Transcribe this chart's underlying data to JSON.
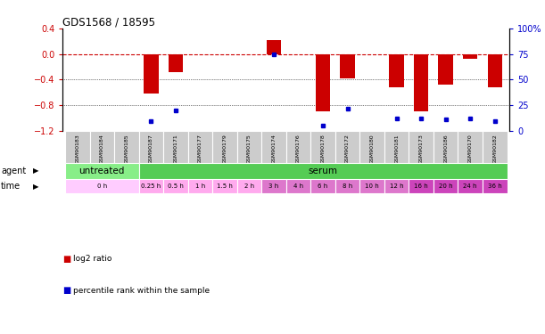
{
  "title": "GDS1568 / 18595",
  "samples": [
    "GSM90183",
    "GSM90184",
    "GSM90185",
    "GSM90187",
    "GSM90171",
    "GSM90177",
    "GSM90179",
    "GSM90175",
    "GSM90174",
    "GSM90176",
    "GSM90178",
    "GSM90172",
    "GSM90180",
    "GSM90181",
    "GSM90173",
    "GSM90186",
    "GSM90170",
    "GSM90182"
  ],
  "log2_ratio": [
    0.0,
    0.0,
    0.0,
    -0.62,
    -0.28,
    0.0,
    0.0,
    0.0,
    0.22,
    0.0,
    -0.9,
    -0.38,
    0.0,
    -0.52,
    -0.9,
    -0.48,
    -0.08,
    -0.52
  ],
  "percentile": [
    null,
    null,
    null,
    10,
    20,
    null,
    null,
    null,
    75,
    null,
    5,
    22,
    null,
    12,
    12,
    11,
    12,
    10
  ],
  "agent_groups": [
    {
      "label": "untreated",
      "start": 0,
      "end": 3,
      "color": "#88ee88"
    },
    {
      "label": "serum",
      "start": 3,
      "end": 18,
      "color": "#55cc55"
    }
  ],
  "time_groups": [
    {
      "label": "0 h",
      "start": 0,
      "end": 3,
      "color": "#ffccff"
    },
    {
      "label": "0.25 h",
      "start": 3,
      "end": 4,
      "color": "#ffaaee"
    },
    {
      "label": "0.5 h",
      "start": 4,
      "end": 5,
      "color": "#ffaaee"
    },
    {
      "label": "1 h",
      "start": 5,
      "end": 6,
      "color": "#ffaaee"
    },
    {
      "label": "1.5 h",
      "start": 6,
      "end": 7,
      "color": "#ffaaee"
    },
    {
      "label": "2 h",
      "start": 7,
      "end": 8,
      "color": "#ffaaee"
    },
    {
      "label": "3 h",
      "start": 8,
      "end": 9,
      "color": "#dd77cc"
    },
    {
      "label": "4 h",
      "start": 9,
      "end": 10,
      "color": "#dd77cc"
    },
    {
      "label": "6 h",
      "start": 10,
      "end": 11,
      "color": "#dd77cc"
    },
    {
      "label": "8 h",
      "start": 11,
      "end": 12,
      "color": "#dd77cc"
    },
    {
      "label": "10 h",
      "start": 12,
      "end": 13,
      "color": "#dd77cc"
    },
    {
      "label": "12 h",
      "start": 13,
      "end": 14,
      "color": "#dd77cc"
    },
    {
      "label": "16 h",
      "start": 14,
      "end": 15,
      "color": "#cc44bb"
    },
    {
      "label": "20 h",
      "start": 15,
      "end": 16,
      "color": "#cc44bb"
    },
    {
      "label": "24 h",
      "start": 16,
      "end": 17,
      "color": "#cc44bb"
    },
    {
      "label": "36 h",
      "start": 17,
      "end": 18,
      "color": "#cc44bb"
    }
  ],
  "ylim": [
    -1.2,
    0.4
  ],
  "yticks_left": [
    -1.2,
    -0.8,
    -0.4,
    0.0,
    0.4
  ],
  "yticks_right_labels": [
    "0",
    "25",
    "50",
    "75",
    "100%"
  ],
  "bar_color": "#cc0000",
  "dot_color": "#0000cc",
  "ref_line_color": "#cc0000",
  "sample_bg_color": "#cccccc",
  "n_samples": 18
}
